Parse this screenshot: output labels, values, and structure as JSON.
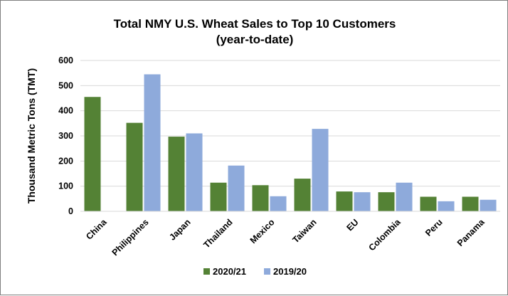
{
  "chart_data": {
    "type": "bar",
    "title_line1": "Total NMY U.S. Wheat Sales to Top 10 Customers",
    "title_line2": "(year-to-date)",
    "ylabel": "Thousand Metric Tons (TMT)",
    "xlabel": "",
    "ylim": [
      0,
      600
    ],
    "yticks": [
      0,
      100,
      200,
      300,
      400,
      500,
      600
    ],
    "grid": true,
    "legend_position": "bottom",
    "categories": [
      "China",
      "Philippines",
      "Japan",
      "Thailand",
      "Mexico",
      "Taiwan",
      "EU",
      "Colombia",
      "Peru",
      "Panama"
    ],
    "series": [
      {
        "name": "2020/21",
        "color": "#548235",
        "values": [
          455,
          352,
          297,
          114,
          104,
          130,
          79,
          76,
          58,
          58
        ]
      },
      {
        "name": "2019/20",
        "color": "#8eaadb",
        "values": [
          0,
          545,
          310,
          182,
          60,
          328,
          76,
          114,
          40,
          46
        ]
      }
    ]
  }
}
